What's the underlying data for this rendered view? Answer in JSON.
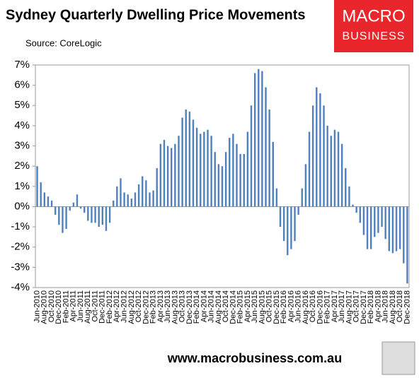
{
  "chart_data": {
    "type": "bar",
    "title": "Sydney Quarterly Dwelling Price Movements",
    "subtitle": "Source: CoreLogic",
    "logo_top": "MACRO",
    "logo_bottom": "BUSINESS",
    "footer": "www.macrobusiness.com.au",
    "color": "#4f81bd",
    "categories": [
      "Jun-2010",
      null,
      "Aug-2010",
      null,
      "Oct-2010",
      null,
      "Dec-2010",
      null,
      "Feb-2011",
      null,
      "Apr-2011",
      null,
      "Jun-2011",
      null,
      "Aug-2011",
      null,
      "Oct-2011",
      null,
      "Dec-2011",
      null,
      "Feb-2012",
      null,
      "Apr-2012",
      null,
      "Jun-2012",
      null,
      "Aug-2012",
      null,
      "Oct-2012",
      null,
      "Dec-2012",
      null,
      "Feb-2013",
      null,
      "Apr-2013",
      null,
      "Jun-2013",
      null,
      "Aug-2013",
      null,
      "Oct-2013",
      null,
      "Dec-2013",
      null,
      "Feb-2014",
      null,
      "Apr-2014",
      null,
      "Jun-2014",
      null,
      "Aug-2014",
      null,
      "Oct-2014",
      null,
      "Dec-2014",
      null,
      "Feb-2015",
      null,
      "Apr-2015",
      null,
      "Jun-2015",
      null,
      "Aug-2015",
      null,
      "Oct-2015",
      null,
      "Dec-2015",
      null,
      "Feb-2016",
      null,
      "Apr-2016",
      null,
      "Jun-2016",
      null,
      "Aug-2016",
      null,
      "Oct-2016",
      null,
      "Dec-2016",
      null,
      "Feb-2017",
      null,
      "Apr-2017",
      null,
      "Jun-2017",
      null,
      "Aug-2017",
      null,
      "Oct-2017",
      null,
      "Dec-2017",
      null,
      "Feb-2018",
      null,
      "Apr-2018",
      null,
      "Jun-2018",
      null,
      "Aug-2018",
      null,
      "Oct-2018",
      null,
      "Dec-2018"
    ],
    "values": [
      2.0,
      1.2,
      0.7,
      0.5,
      0.3,
      -0.4,
      -0.9,
      -1.3,
      -1.1,
      -0.2,
      0.2,
      0.6,
      -0.1,
      -0.3,
      -0.7,
      -0.8,
      -0.8,
      -1.0,
      -0.9,
      -1.2,
      -0.8,
      0.3,
      1.0,
      1.4,
      0.7,
      0.6,
      0.4,
      0.7,
      1.1,
      1.5,
      1.3,
      0.7,
      0.8,
      1.9,
      3.1,
      3.3,
      3.0,
      2.9,
      3.1,
      3.5,
      4.4,
      4.8,
      4.7,
      4.3,
      3.9,
      3.6,
      3.7,
      3.8,
      3.5,
      2.7,
      2.1,
      2.0,
      2.7,
      3.4,
      3.6,
      3.1,
      2.6,
      2.6,
      3.7,
      5.0,
      6.6,
      6.8,
      6.7,
      5.9,
      4.8,
      3.2,
      0.9,
      -1.0,
      -1.7,
      -2.4,
      -2.1,
      -1.7,
      -0.4,
      0.9,
      2.1,
      3.7,
      5.0,
      5.9,
      5.6,
      5.0,
      4.0,
      3.5,
      3.8,
      3.7,
      3.1,
      1.9,
      1.0,
      0.1,
      -0.3,
      -0.8,
      -1.4,
      -2.1,
      -2.1,
      -1.5,
      -1.3,
      -1.0,
      -1.6,
      -2.2,
      -2.3,
      -2.2,
      -2.1,
      -2.8,
      -3.8
    ],
    "ylim": [
      -4,
      7
    ],
    "yticks": [
      {
        "value": -4,
        "label": "-4%"
      },
      {
        "value": -3,
        "label": "-3%"
      },
      {
        "value": -2,
        "label": "-2%"
      },
      {
        "value": -1,
        "label": "-1%"
      },
      {
        "value": 0,
        "label": "0%"
      },
      {
        "value": 1,
        "label": "1%"
      },
      {
        "value": 2,
        "label": "2%"
      },
      {
        "value": 3,
        "label": "3%"
      },
      {
        "value": 4,
        "label": "4%"
      },
      {
        "value": 5,
        "label": "5%"
      },
      {
        "value": 6,
        "label": "6%"
      },
      {
        "value": 7,
        "label": "7%"
      }
    ]
  }
}
